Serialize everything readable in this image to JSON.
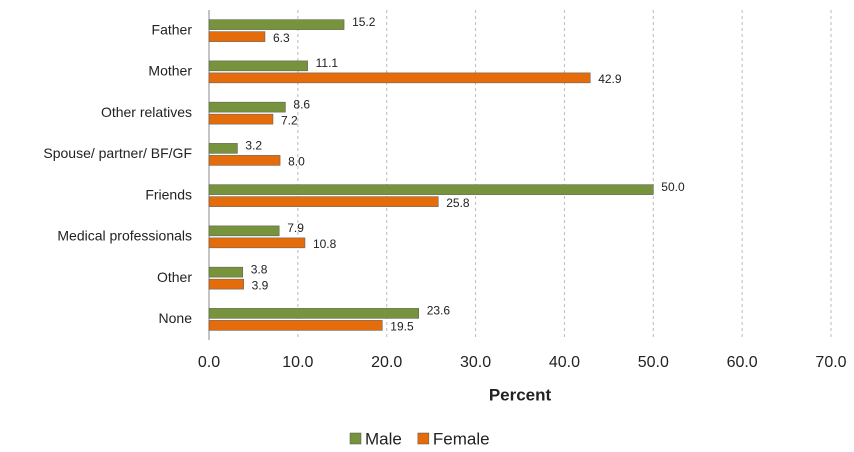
{
  "chart_data": {
    "type": "bar",
    "orientation": "horizontal",
    "x_label": "Percent",
    "categories": [
      "Father",
      "Mother",
      "Other relatives",
      "Spouse/ partner/ BF/GF",
      "Friends",
      "Medical professionals",
      "Other",
      "None"
    ],
    "series": [
      {
        "name": "Male",
        "color": "#77933c",
        "values": [
          15.2,
          11.1,
          8.6,
          3.2,
          50.0,
          7.9,
          3.8,
          23.6
        ],
        "value_labels": [
          "15.2",
          "11.1",
          "8.6",
          "3.2",
          "50.0",
          "7.9",
          "3.8",
          "23.6"
        ]
      },
      {
        "name": "Female",
        "color": "#e46c0a",
        "values": [
          6.3,
          42.9,
          7.2,
          8.0,
          25.8,
          10.8,
          3.9,
          19.5
        ],
        "value_labels": [
          "6.3",
          "42.9",
          "7.2",
          "8.0",
          "25.8",
          "10.8",
          "3.9",
          "19.5"
        ]
      }
    ],
    "xlim": [
      0,
      70
    ],
    "xticks": [
      {
        "value": 0,
        "label": "0.0"
      },
      {
        "value": 10,
        "label": "10.0"
      },
      {
        "value": 20,
        "label": "20.0"
      },
      {
        "value": 30,
        "label": "30.0"
      },
      {
        "value": 40,
        "label": "40.0"
      },
      {
        "value": 50,
        "label": "50.0"
      },
      {
        "value": 60,
        "label": "60.0"
      },
      {
        "value": 70,
        "label": "70.0"
      }
    ],
    "grid": true,
    "legend": "bottom"
  }
}
